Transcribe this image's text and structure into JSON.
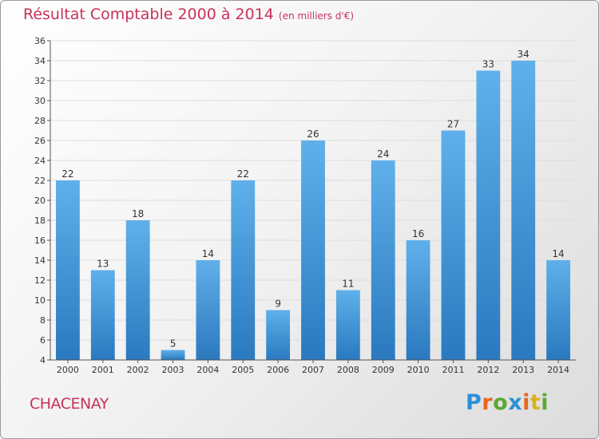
{
  "title": "Résultat Comptable 2000 à 2014",
  "subtitle": "(en milliers d'€)",
  "commune": "CHACENAY",
  "brand": {
    "letters": [
      "P",
      "r",
      "o",
      "x",
      "i",
      "t",
      "i"
    ],
    "colors": [
      "#2a8fd6",
      "#e8661e",
      "#5aa830",
      "#2a8fd6",
      "#e8661e",
      "#d9b21a",
      "#5aa830"
    ]
  },
  "colors": {
    "bar_top": "#5fb0ea",
    "bar_bottom": "#2a79bf",
    "grid": "#dddddd",
    "text": "#333333",
    "accent": "#c8325a"
  },
  "chart_data": {
    "type": "bar",
    "title": "Résultat Comptable 2000 à 2014",
    "subtitle": "(en milliers d'€)",
    "xlabel": "",
    "ylabel": "",
    "categories": [
      "2000",
      "2001",
      "2002",
      "2003",
      "2004",
      "2005",
      "2006",
      "2007",
      "2008",
      "2009",
      "2010",
      "2011",
      "2012",
      "2013",
      "2014"
    ],
    "values": [
      22,
      13,
      18,
      5,
      14,
      22,
      9,
      26,
      11,
      24,
      16,
      27,
      33,
      34,
      14
    ],
    "ylim": [
      4,
      36
    ],
    "yticks": [
      4,
      6,
      8,
      10,
      12,
      14,
      16,
      18,
      20,
      22,
      24,
      26,
      28,
      30,
      32,
      34,
      36
    ],
    "grid": true,
    "data_labels": true
  }
}
